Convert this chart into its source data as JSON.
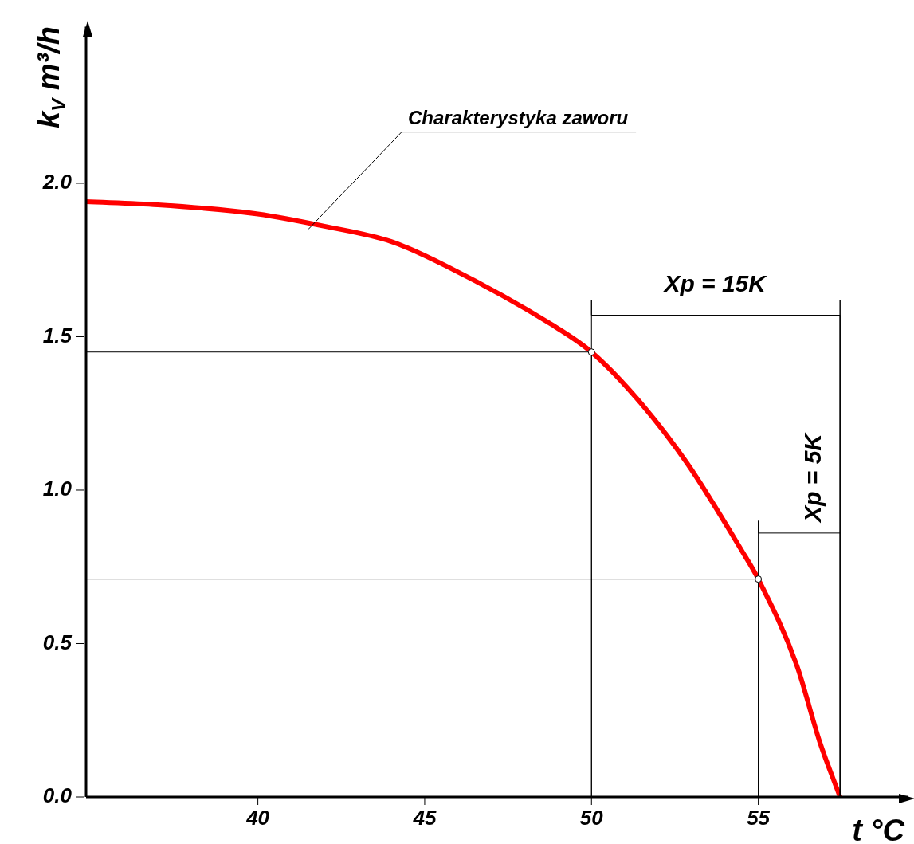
{
  "chart_data": {
    "type": "line",
    "xlabel": "t °C",
    "ylabel": "k$_{V}$ m³/h",
    "xlim": [
      34.85,
      59.5
    ],
    "ylim": [
      0,
      2.51
    ],
    "xticks": [
      40,
      45,
      50,
      55
    ],
    "yticks": [
      {
        "value": 0,
        "label": "0.0"
      },
      {
        "value": 0.5,
        "label": "0.5"
      },
      {
        "value": 1,
        "label": "1.0"
      },
      {
        "value": 1.5,
        "label": "1.5"
      },
      {
        "value": 2,
        "label": "2.0"
      }
    ],
    "grid": false,
    "legend": false,
    "series": [
      {
        "color": "#ff0000",
        "x": [
          34.85,
          37,
          40,
          42,
          44,
          45.65,
          48.8,
          50,
          51.35,
          52.85,
          54.52,
          55,
          56.15,
          56.84,
          57.45
        ],
        "values": [
          1.94,
          1.93,
          1.9,
          1.86,
          1.81,
          1.73,
          1.54,
          1.45,
          1.3,
          1.09,
          0.8,
          0.71,
          0.43,
          0.18,
          0
        ]
      },
      {
        "color": "#000000",
        "x": [
          34.85,
          50,
          50,
          50,
          50,
          57.45,
          57.45,
          57.45
        ],
        "values": [
          1.45,
          1.45,
          0,
          1.62,
          1.57,
          1.57,
          1.62,
          0
        ]
      },
      {
        "color": "#000000",
        "x": [
          34.85,
          55,
          55,
          55,
          55,
          57.45
        ],
        "values": [
          0.71,
          0.71,
          0,
          0.9,
          0.86,
          0.86
        ]
      },
      {
        "type": "scatter",
        "color": "#000000",
        "x": [
          50,
          55
        ],
        "values": [
          1.45,
          0.71
        ]
      }
    ],
    "annotations": [
      "Charakterystyka zaworu",
      {
        "text": "Xp = 15K",
        "x": 53.7,
        "y": 1.57
      },
      {
        "text": "Xp = 5K",
        "x": 56.2,
        "y": 0.86
      }
    ]
  }
}
